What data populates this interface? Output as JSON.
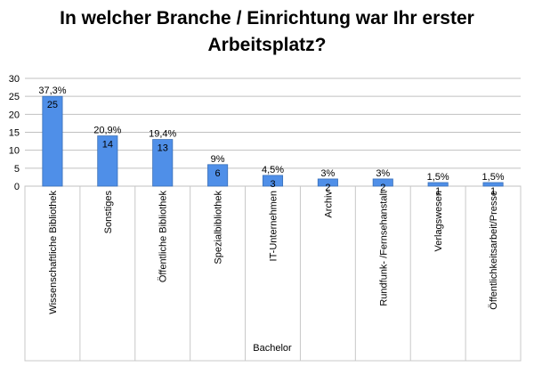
{
  "chart_data": {
    "type": "bar",
    "title_lines": [
      "In welcher Branche / Einrichtung war Ihr erster",
      "Arbeitsplatz?"
    ],
    "categories": [
      "Wissenschaftliche Bibliothek",
      "Sonstiges",
      "Öffentliche Bibliothek",
      "Spezialbibliothek",
      "IT-Unternehmen",
      "Archiv",
      "Rundfunk- /Fernsehanstalt",
      "Verlagswesen",
      "Öffentlichkeitsarbeit/Presse"
    ],
    "values": [
      25,
      14,
      13,
      6,
      3,
      2,
      2,
      1,
      1
    ],
    "percent_labels": [
      "37,3%",
      "20,9%",
      "19,4%",
      "9%",
      "4,5%",
      "3%",
      "3%",
      "1,5%",
      "1,5%"
    ],
    "xlabel": "Bachelor",
    "ylabel": "",
    "ylim": [
      0,
      30
    ],
    "yticks": [
      0,
      5,
      10,
      15,
      20,
      25,
      30
    ],
    "grid": true,
    "legend": "none",
    "bar_color": "#4f8fe8",
    "bar_edge_color": "#3a70b8"
  }
}
